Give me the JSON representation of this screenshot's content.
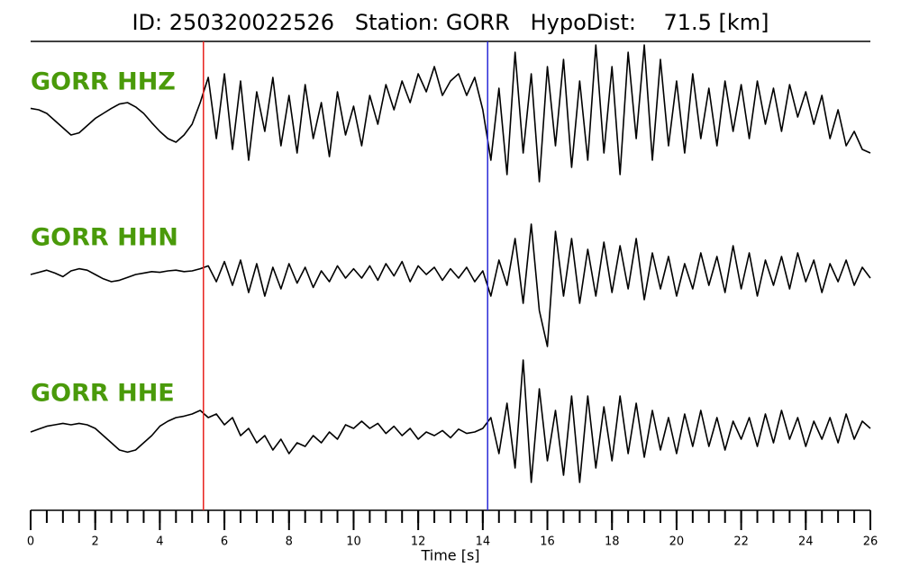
{
  "chart_data": {
    "type": "line",
    "title": "ID: 250320022526   Station: GORR   HypoDist:    71.5 [km]",
    "xlabel": "Time [s]",
    "xlim": [
      0,
      26
    ],
    "xticks": [
      0,
      2,
      4,
      6,
      8,
      10,
      12,
      14,
      16,
      18,
      20,
      22,
      24,
      26
    ],
    "xminorticks": [
      0,
      0.5,
      1,
      1.5,
      2,
      2.5,
      3,
      3.5,
      4,
      4.5,
      5,
      5.5,
      6,
      6.5,
      7,
      7.5,
      8,
      8.5,
      9,
      9.5,
      10,
      10.5,
      11,
      11.5,
      12,
      12.5,
      13,
      13.5,
      14,
      14.5,
      15,
      15.5,
      16,
      16.5,
      17,
      17.5,
      18,
      18.5,
      19,
      19.5,
      20,
      20.5,
      21,
      21.5,
      22,
      22.5,
      23,
      23.5,
      24,
      24.5,
      25,
      25.5,
      26
    ],
    "label_color": "#4a9a0a",
    "vlines": [
      {
        "x": 5.35,
        "color": "#e8211d"
      },
      {
        "x": 14.15,
        "color": "#2a2ad8"
      }
    ],
    "x": [
      0,
      0.25,
      0.5,
      0.75,
      1,
      1.25,
      1.5,
      1.75,
      2,
      2.25,
      2.5,
      2.75,
      3,
      3.25,
      3.5,
      3.75,
      4,
      4.25,
      4.5,
      4.75,
      5,
      5.25,
      5.5,
      5.75,
      6,
      6.25,
      6.5,
      6.75,
      7,
      7.25,
      7.5,
      7.75,
      8,
      8.25,
      8.5,
      8.75,
      9,
      9.25,
      9.5,
      9.75,
      10,
      10.25,
      10.5,
      10.75,
      11,
      11.25,
      11.5,
      11.75,
      12,
      12.25,
      12.5,
      12.75,
      13,
      13.25,
      13.5,
      13.75,
      14,
      14.25,
      14.5,
      14.75,
      15,
      15.25,
      15.5,
      15.75,
      16,
      16.25,
      16.5,
      16.75,
      17,
      17.25,
      17.5,
      17.75,
      18,
      18.25,
      18.5,
      18.75,
      19,
      19.25,
      19.5,
      19.75,
      20,
      20.25,
      20.5,
      20.75,
      21,
      21.25,
      21.5,
      21.75,
      22,
      22.25,
      22.5,
      22.75,
      23,
      23.25,
      23.5,
      23.75,
      24,
      24.25,
      24.5,
      24.75,
      25,
      25.25,
      25.5,
      25.75,
      26
    ],
    "series": [
      {
        "name": "GORR HHZ",
        "color": "#000000",
        "values": [
          0.12,
          0.1,
          0.05,
          -0.05,
          -0.15,
          -0.25,
          -0.22,
          -0.12,
          -0.02,
          0.05,
          0.12,
          0.18,
          0.2,
          0.14,
          0.05,
          -0.08,
          -0.2,
          -0.3,
          -0.35,
          -0.25,
          -0.1,
          0.2,
          0.55,
          -0.3,
          0.6,
          -0.45,
          0.5,
          -0.6,
          0.35,
          -0.2,
          0.55,
          -0.4,
          0.3,
          -0.5,
          0.45,
          -0.3,
          0.2,
          -0.55,
          0.35,
          -0.25,
          0.15,
          -0.4,
          0.3,
          -0.1,
          0.45,
          0.1,
          0.5,
          0.2,
          0.6,
          0.35,
          0.7,
          0.3,
          0.5,
          0.6,
          0.3,
          0.55,
          0.1,
          -0.6,
          0.4,
          -0.8,
          0.9,
          -0.5,
          0.6,
          -0.9,
          0.7,
          -0.4,
          0.8,
          -0.7,
          0.5,
          -0.6,
          1.0,
          -0.5,
          0.7,
          -0.8,
          0.9,
          -0.3,
          1.0,
          -0.6,
          0.8,
          -0.4,
          0.5,
          -0.5,
          0.6,
          -0.3,
          0.4,
          -0.4,
          0.5,
          -0.2,
          0.45,
          -0.3,
          0.5,
          -0.1,
          0.4,
          -0.2,
          0.45,
          0.0,
          0.35,
          -0.1,
          0.3,
          -0.3,
          0.1,
          -0.4,
          -0.2,
          -0.45,
          -0.5
        ]
      },
      {
        "name": "GORR HHN",
        "color": "#000000",
        "values": [
          0,
          0.03,
          0.06,
          0.02,
          -0.03,
          0.05,
          0.08,
          0.06,
          0.0,
          -0.06,
          -0.1,
          -0.08,
          -0.04,
          0.0,
          0.02,
          0.04,
          0.03,
          0.05,
          0.06,
          0.04,
          0.05,
          0.08,
          0.12,
          -0.1,
          0.18,
          -0.15,
          0.2,
          -0.25,
          0.15,
          -0.3,
          0.1,
          -0.2,
          0.15,
          -0.12,
          0.1,
          -0.18,
          0.05,
          -0.1,
          0.12,
          -0.05,
          0.08,
          -0.05,
          0.12,
          -0.08,
          0.15,
          -0.02,
          0.18,
          -0.1,
          0.12,
          0.0,
          0.1,
          -0.08,
          0.08,
          -0.05,
          0.1,
          -0.1,
          0.05,
          -0.3,
          0.2,
          -0.15,
          0.5,
          -0.4,
          0.7,
          -0.5,
          -1.0,
          0.6,
          -0.3,
          0.5,
          -0.4,
          0.35,
          -0.3,
          0.45,
          -0.25,
          0.4,
          -0.2,
          0.5,
          -0.35,
          0.3,
          -0.2,
          0.25,
          -0.3,
          0.15,
          -0.2,
          0.3,
          -0.15,
          0.25,
          -0.25,
          0.4,
          -0.2,
          0.3,
          -0.3,
          0.2,
          -0.15,
          0.25,
          -0.2,
          0.3,
          -0.1,
          0.2,
          -0.25,
          0.15,
          -0.1,
          0.2,
          -0.15,
          0.1,
          -0.05
        ]
      },
      {
        "name": "GORR HHE",
        "color": "#000000",
        "values": [
          0.0,
          0.04,
          0.08,
          0.1,
          0.12,
          0.1,
          0.12,
          0.1,
          0.05,
          -0.05,
          -0.15,
          -0.25,
          -0.28,
          -0.25,
          -0.15,
          -0.05,
          0.08,
          0.15,
          0.2,
          0.22,
          0.25,
          0.3,
          0.2,
          0.25,
          0.1,
          0.2,
          -0.05,
          0.05,
          -0.15,
          -0.05,
          -0.25,
          -0.1,
          -0.3,
          -0.15,
          -0.2,
          -0.05,
          -0.15,
          0.0,
          -0.1,
          0.1,
          0.05,
          0.15,
          0.05,
          0.12,
          -0.02,
          0.08,
          -0.05,
          0.05,
          -0.1,
          0.0,
          -0.05,
          0.02,
          -0.08,
          0.04,
          -0.02,
          0.0,
          0.05,
          0.2,
          -0.3,
          0.4,
          -0.5,
          1.0,
          -0.7,
          0.6,
          -0.4,
          0.3,
          -0.6,
          0.5,
          -0.7,
          0.5,
          -0.5,
          0.35,
          -0.4,
          0.5,
          -0.3,
          0.4,
          -0.35,
          0.3,
          -0.25,
          0.2,
          -0.3,
          0.25,
          -0.2,
          0.3,
          -0.2,
          0.2,
          -0.25,
          0.15,
          -0.1,
          0.2,
          -0.2,
          0.25,
          -0.15,
          0.3,
          -0.1,
          0.2,
          -0.2,
          0.15,
          -0.1,
          0.2,
          -0.15,
          0.25,
          -0.1,
          0.15,
          0.05
        ]
      }
    ]
  }
}
